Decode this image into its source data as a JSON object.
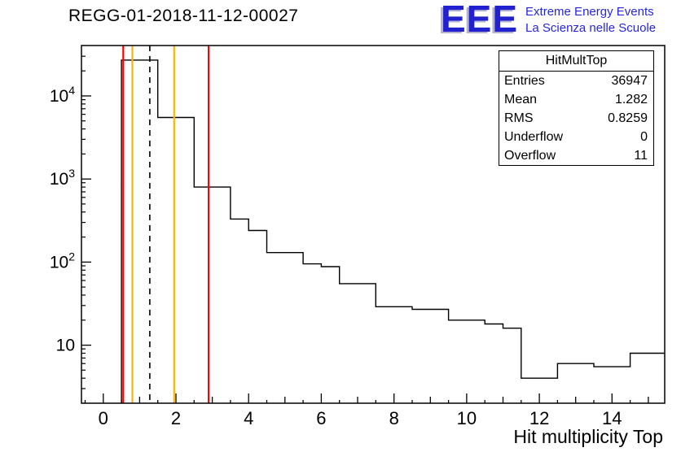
{
  "page": {
    "title": "REGG-01-2018-11-12-00027"
  },
  "logo": {
    "text": "EEE",
    "line1": "Extreme Energy Events",
    "line2": "La Scienza nelle Scuole",
    "color": "#2121cf"
  },
  "colors": {
    "histogram": "#000000",
    "cut_line_red": "#ff0000",
    "cut_line_orange": "#ffb400",
    "mean_line": "#000000",
    "frame": "#000000"
  },
  "chart_data": {
    "type": "step-histogram",
    "title": "REGG-01-2018-11-12-00027",
    "xlabel": "Hit multiplicity Top",
    "ylabel": "",
    "y_scale": "log",
    "x_range": [
      -0.6,
      15.45
    ],
    "y_range": [
      2.0,
      40400
    ],
    "x_ticks_labeled": [
      0,
      2,
      4,
      6,
      8,
      10,
      12,
      14
    ],
    "x_minor_step": 0.5,
    "y_major_ticks": [
      10,
      100,
      1000,
      10000
    ],
    "grid": false,
    "legend": "none",
    "bins": [
      {
        "x0": 0.5,
        "x1": 1.5,
        "y": 27000
      },
      {
        "x0": 1.5,
        "x1": 2.5,
        "y": 5500
      },
      {
        "x0": 2.5,
        "x1": 3.5,
        "y": 800
      },
      {
        "x0": 3.5,
        "x1": 4.0,
        "y": 330
      },
      {
        "x0": 4.0,
        "x1": 4.5,
        "y": 240
      },
      {
        "x0": 4.5,
        "x1": 5.5,
        "y": 130
      },
      {
        "x0": 5.5,
        "x1": 6.0,
        "y": 95
      },
      {
        "x0": 6.0,
        "x1": 6.5,
        "y": 88
      },
      {
        "x0": 6.5,
        "x1": 7.5,
        "y": 55
      },
      {
        "x0": 7.5,
        "x1": 8.5,
        "y": 29
      },
      {
        "x0": 8.5,
        "x1": 9.5,
        "y": 27
      },
      {
        "x0": 9.5,
        "x1": 10.5,
        "y": 20
      },
      {
        "x0": 10.5,
        "x1": 11.0,
        "y": 18
      },
      {
        "x0": 11.0,
        "x1": 11.5,
        "y": 16
      },
      {
        "x0": 11.5,
        "x1": 12.5,
        "y": 4
      },
      {
        "x0": 12.5,
        "x1": 13.5,
        "y": 6
      },
      {
        "x0": 13.5,
        "x1": 14.5,
        "y": 5.5
      },
      {
        "x0": 14.5,
        "x1": 15.45,
        "y": 8
      }
    ],
    "vlines": [
      {
        "x": 0.55,
        "color": "#ff0000",
        "style": "solid"
      },
      {
        "x": 0.8,
        "color": "#ffb400",
        "style": "solid"
      },
      {
        "x": 1.28,
        "color": "#000000",
        "style": "dashed"
      },
      {
        "x": 1.95,
        "color": "#ffb400",
        "style": "solid"
      },
      {
        "x": 2.9,
        "color": "#ff0000",
        "style": "solid"
      }
    ],
    "stats": {
      "title": "HitMultTop",
      "rows": [
        {
          "label": "Entries",
          "value": "36947"
        },
        {
          "label": "Mean",
          "value": "1.282"
        },
        {
          "label": "RMS",
          "value": "0.8259"
        },
        {
          "label": "Underflow",
          "value": "0"
        },
        {
          "label": "Overflow",
          "value": "11"
        }
      ]
    }
  }
}
